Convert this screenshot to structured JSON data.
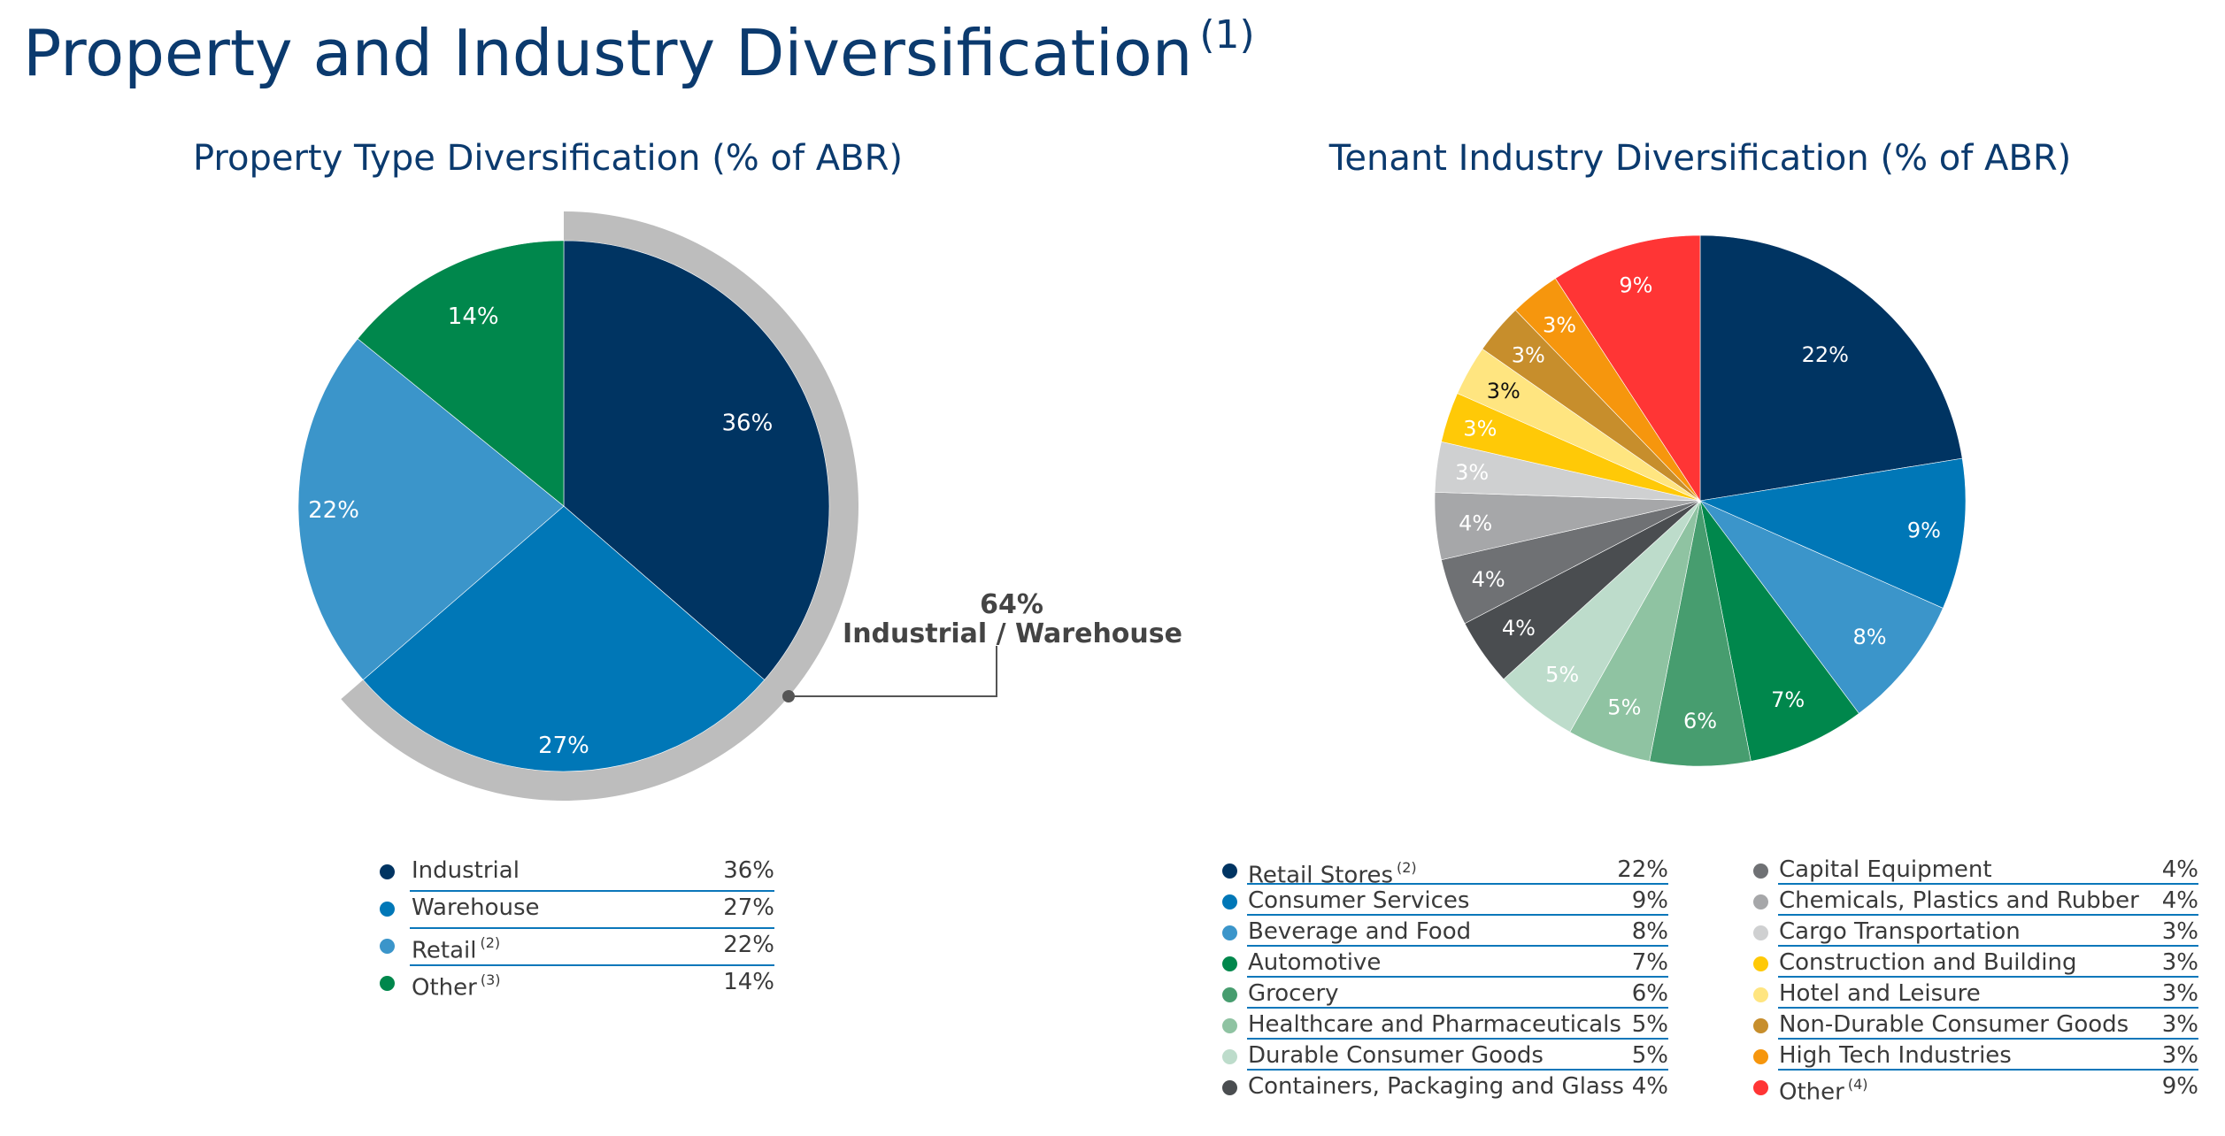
{
  "page": {
    "title": "Property and Industry Diversification",
    "title_sup": "(1)"
  },
  "callout": {
    "value": "64%",
    "label": "Industrial / Warehouse"
  },
  "chart_data": [
    {
      "type": "pie",
      "title": "Property Type Diversification (% of ABR)",
      "unit": "%",
      "slices": [
        {
          "label": "Industrial",
          "value": 36,
          "display": "36%",
          "color": "#003462",
          "note": ""
        },
        {
          "label": "Warehouse",
          "value": 27,
          "display": "27%",
          "color": "#0077b7",
          "note": ""
        },
        {
          "label": "Retail",
          "value": 22,
          "display": "22%",
          "color": "#3b95ca",
          "note": "(2)"
        },
        {
          "label": "Other",
          "value": 14,
          "display": "14%",
          "color": "#00874c",
          "note": "(3)"
        }
      ]
    },
    {
      "type": "pie",
      "title": "Tenant Industry Diversification (% of ABR)",
      "unit": "%",
      "slices": [
        {
          "label": "Retail Stores",
          "value": 22,
          "display": "22%",
          "color": "#003462",
          "note": "(2)"
        },
        {
          "label": "Consumer Services",
          "value": 9,
          "display": "9%",
          "color": "#0077b7",
          "note": ""
        },
        {
          "label": "Beverage and Food",
          "value": 8,
          "display": "8%",
          "color": "#3b95ca",
          "note": ""
        },
        {
          "label": "Automotive",
          "value": 7,
          "display": "7%",
          "color": "#00874c",
          "note": ""
        },
        {
          "label": "Grocery",
          "value": 6,
          "display": "6%",
          "color": "#479d6f",
          "note": ""
        },
        {
          "label": "Healthcare and Pharmaceuticals",
          "value": 5,
          "display": "5%",
          "color": "#8fc3a2",
          "note": ""
        },
        {
          "label": "Durable Consumer Goods",
          "value": 5,
          "display": "5%",
          "color": "#bddccb",
          "note": ""
        },
        {
          "label": "Containers, Packaging and Glass",
          "value": 4,
          "display": "4%",
          "color": "#4a4d50",
          "note": ""
        },
        {
          "label": "Capital Equipment",
          "value": 4,
          "display": "4%",
          "color": "#6f7174",
          "note": ""
        },
        {
          "label": "Chemicals, Plastics and Rubber",
          "value": 4,
          "display": "4%",
          "color": "#a6a7a9",
          "note": ""
        },
        {
          "label": "Cargo Transportation",
          "value": 3,
          "display": "3%",
          "color": "#cfd0d1",
          "note": ""
        },
        {
          "label": "Construction and Building",
          "value": 3,
          "display": "3%",
          "color": "#ffc907",
          "note": ""
        },
        {
          "label": "Hotel and Leisure",
          "value": 3,
          "display": "3%",
          "color": "#ffe580",
          "note": ""
        },
        {
          "label": "Non-Durable Consumer Goods",
          "value": 3,
          "display": "3%",
          "color": "#c78e2c",
          "note": ""
        },
        {
          "label": "High Tech Industries",
          "value": 3,
          "display": "3%",
          "color": "#f6960d",
          "note": ""
        },
        {
          "label": "Other",
          "value": 9,
          "display": "9%",
          "color": "#ff3535",
          "note": "(4)"
        }
      ]
    }
  ]
}
